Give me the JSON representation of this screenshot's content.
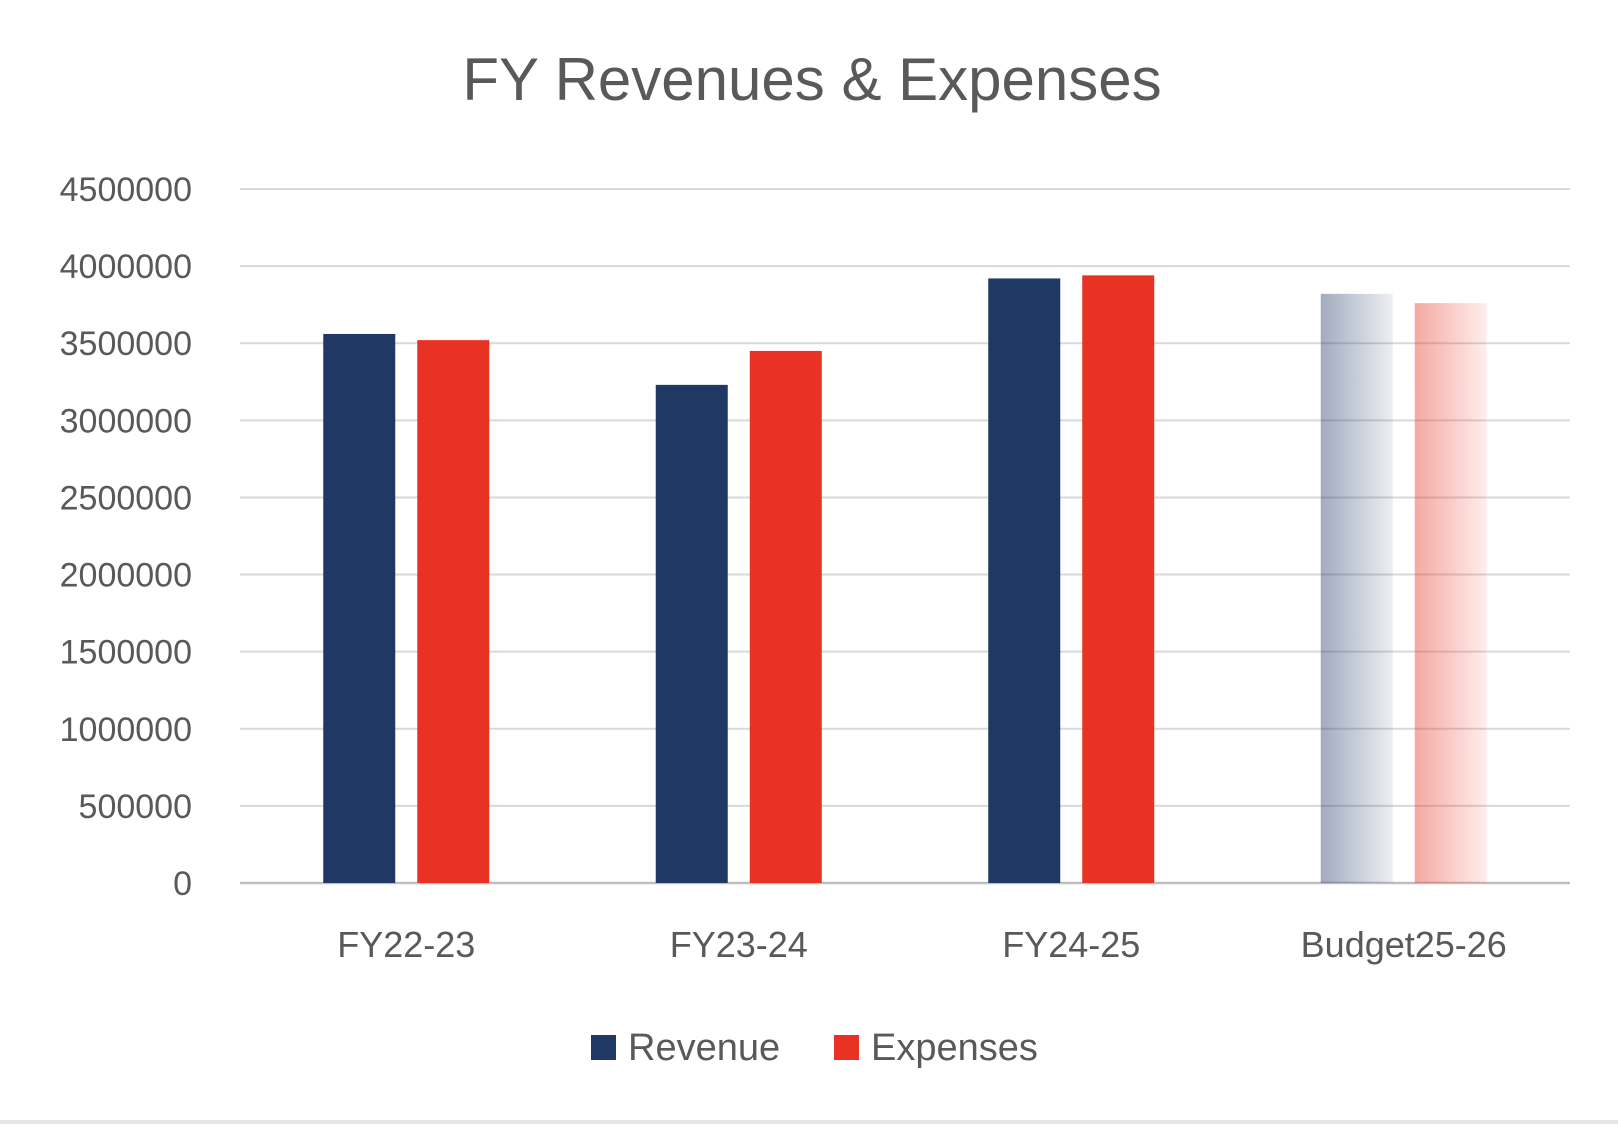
{
  "chart_data": {
    "type": "bar",
    "title": "FY Revenues & Expenses",
    "categories": [
      "FY22-23",
      "FY23-24",
      "FY24-25",
      "Budget25-26"
    ],
    "series": [
      {
        "name": "Revenue",
        "color": "#203864",
        "values": [
          3560000,
          3230000,
          3920000,
          3820000
        ]
      },
      {
        "name": "Expenses",
        "color": "#E83223",
        "values": [
          3520000,
          3450000,
          3940000,
          3760000
        ]
      }
    ],
    "projected_categories": [
      "Budget25-26"
    ],
    "ylim": [
      0,
      4500000
    ],
    "yticks": [
      0,
      500000,
      1000000,
      1500000,
      2000000,
      2500000,
      3000000,
      3500000,
      4000000,
      4500000
    ],
    "grid": true,
    "legend": "bottom",
    "xlabel": "",
    "ylabel": ""
  }
}
